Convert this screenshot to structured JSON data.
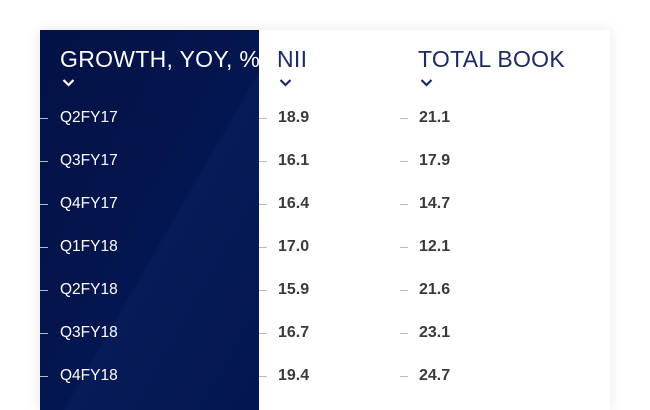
{
  "chart_data": {
    "type": "table",
    "columns": [
      "GROWTH, YOY, %",
      "NII",
      "TOTAL BOOK"
    ],
    "rows": [
      {
        "period": "Q2FY17",
        "nii": "18.9",
        "total_book": "21.1"
      },
      {
        "period": "Q3FY17",
        "nii": "16.1",
        "total_book": "17.9"
      },
      {
        "period": "Q4FY17",
        "nii": "16.4",
        "total_book": "14.7"
      },
      {
        "period": "Q1FY18",
        "nii": "17.0",
        "total_book": "12.1"
      },
      {
        "period": "Q2FY18",
        "nii": "15.9",
        "total_book": "21.6"
      },
      {
        "period": "Q3FY18",
        "nii": "16.7",
        "total_book": "23.1"
      },
      {
        "period": "Q4FY18",
        "nii": "19.4",
        "total_book": "24.7"
      }
    ]
  },
  "colors": {
    "header_panel": "#041650",
    "header_text_light": "#1d2a63",
    "value_text": "#3a3a3a"
  },
  "icons": {
    "sort": "chevron-down-icon"
  }
}
